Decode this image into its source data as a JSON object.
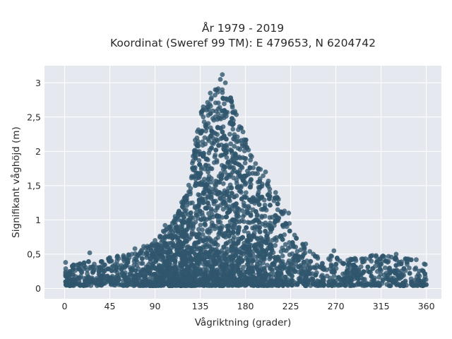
{
  "chart_data": {
    "type": "scatter",
    "title_lines": [
      "År 1979 - 2019",
      "Koordinat (Sweref 99 TM): E 479653, N 6204742"
    ],
    "xlabel": "Vågriktning (grader)",
    "ylabel": "Signifikant våghöjd (m)",
    "xlim": [
      -20,
      375
    ],
    "ylim": [
      -0.15,
      3.25
    ],
    "x_ticks": [
      0,
      45,
      90,
      135,
      180,
      225,
      270,
      315,
      360
    ],
    "x_tick_labels": [
      "0",
      "45",
      "90",
      "135",
      "180",
      "225",
      "270",
      "315",
      "360"
    ],
    "y_ticks": [
      0,
      0.5,
      1,
      1.5,
      2,
      2.5,
      3
    ],
    "y_tick_labels": [
      "0",
      "0,5",
      "1",
      "1,5",
      "2",
      "2,5",
      "3"
    ],
    "grid": true,
    "point_color": "#30566d",
    "background_color": "#e5e8ef",
    "envelope": {
      "x": [
        0,
        20,
        45,
        70,
        90,
        105,
        115,
        125,
        130,
        135,
        140,
        145,
        150,
        155,
        160,
        165,
        170,
        180,
        190,
        200,
        210,
        220,
        230,
        240,
        250,
        260,
        270,
        290,
        315,
        340,
        360
      ],
      "y": [
        0.3,
        0.4,
        0.45,
        0.55,
        0.7,
        0.95,
        1.2,
        1.6,
        2.2,
        2.55,
        2.7,
        2.85,
        2.9,
        3.05,
        2.95,
        2.8,
        2.6,
        2.2,
        1.9,
        1.65,
        1.4,
        1.1,
        0.8,
        0.65,
        0.6,
        0.55,
        0.45,
        0.45,
        0.5,
        0.45,
        0.35
      ]
    },
    "sample_points": [
      {
        "x": 157,
        "y": 3.12
      },
      {
        "x": 155,
        "y": 3.05
      },
      {
        "x": 160,
        "y": 3.0
      },
      {
        "x": 150,
        "y": 2.9
      },
      {
        "x": 145,
        "y": 2.85
      },
      {
        "x": 165,
        "y": 2.78
      },
      {
        "x": 138,
        "y": 2.65
      },
      {
        "x": 180,
        "y": 2.1
      },
      {
        "x": 200,
        "y": 1.7
      },
      {
        "x": 210,
        "y": 1.4
      },
      {
        "x": 223,
        "y": 1.1
      },
      {
        "x": 240,
        "y": 0.65
      },
      {
        "x": 268,
        "y": 0.55
      },
      {
        "x": 310,
        "y": 0.48
      },
      {
        "x": 330,
        "y": 0.5
      },
      {
        "x": 350,
        "y": 0.42
      },
      {
        "x": 359,
        "y": 0.35
      },
      {
        "x": 25,
        "y": 0.52
      },
      {
        "x": 45,
        "y": 0.45
      },
      {
        "x": 70,
        "y": 0.58
      },
      {
        "x": 90,
        "y": 0.7
      },
      {
        "x": 100,
        "y": 0.92
      },
      {
        "x": 110,
        "y": 1.05
      },
      {
        "x": 1,
        "y": 0.38
      }
    ]
  }
}
